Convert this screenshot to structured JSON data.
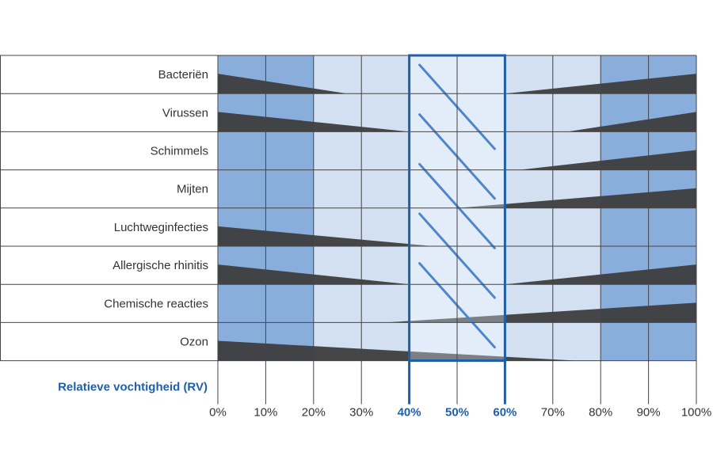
{
  "chart_data": {
    "type": "range-chart",
    "title": "",
    "xlabel": "Relatieve vochtigheid (RV)",
    "ylabel": "",
    "x_ticks": [
      "0%",
      "10%",
      "20%",
      "30%",
      "40%",
      "50%",
      "60%",
      "70%",
      "80%",
      "90%",
      "100%"
    ],
    "xlim": [
      0,
      100
    ],
    "optimal_zone": [
      40,
      60
    ],
    "highlight_ticks": [
      "40%",
      "50%",
      "60%"
    ],
    "colors": {
      "dark_band": "#8aaedc",
      "mid_band": "#d2e0f2",
      "optimal_band": "#e3edf9",
      "wedge": "#3d3d3d",
      "highlight": "#1f5fa8",
      "grid": "#444444"
    },
    "column_shades": [
      "dark",
      "dark",
      "mid",
      "mid",
      "optimal",
      "optimal",
      "mid",
      "mid",
      "dark",
      "dark"
    ],
    "rows": [
      {
        "label": "Bacteriën",
        "shade_override": null,
        "left_wedge": {
          "start": 0,
          "end": 27
        },
        "right_wedge": {
          "start": 60,
          "end": 100
        }
      },
      {
        "label": "Virussen",
        "shade_override": null,
        "left_wedge": {
          "start": 0,
          "end": 40
        },
        "right_wedge": {
          "start": 73,
          "end": 100
        }
      },
      {
        "label": "Schimmels",
        "shade_override": {
          "from": 0,
          "to": 20,
          "shade": "dark"
        },
        "left_wedge": null,
        "right_wedge": {
          "start": 63,
          "end": 100
        }
      },
      {
        "label": "Mijten",
        "shade_override": {
          "from": 0,
          "to": 20,
          "shade": "dark"
        },
        "left_wedge": null,
        "right_wedge": {
          "start": 50,
          "end": 100
        }
      },
      {
        "label": "Luchtweginfecties",
        "shade_override": null,
        "left_wedge": {
          "start": 0,
          "end": 45
        },
        "right_wedge": null
      },
      {
        "label": "Allergische rhinitis",
        "shade_override": null,
        "left_wedge": {
          "start": 0,
          "end": 40
        },
        "right_wedge": {
          "start": 60,
          "end": 100
        }
      },
      {
        "label": "Chemische reacties",
        "shade_override": {
          "from": 0,
          "to": 20,
          "shade": "dark"
        },
        "left_wedge": null,
        "right_wedge": {
          "start": 35,
          "end": 100
        }
      },
      {
        "label": "Ozon",
        "shade_override": {
          "from": 0,
          "to": 20,
          "shade": "dark"
        },
        "left_wedge": {
          "start": 0,
          "end": 75
        },
        "right_wedge": null
      }
    ]
  }
}
